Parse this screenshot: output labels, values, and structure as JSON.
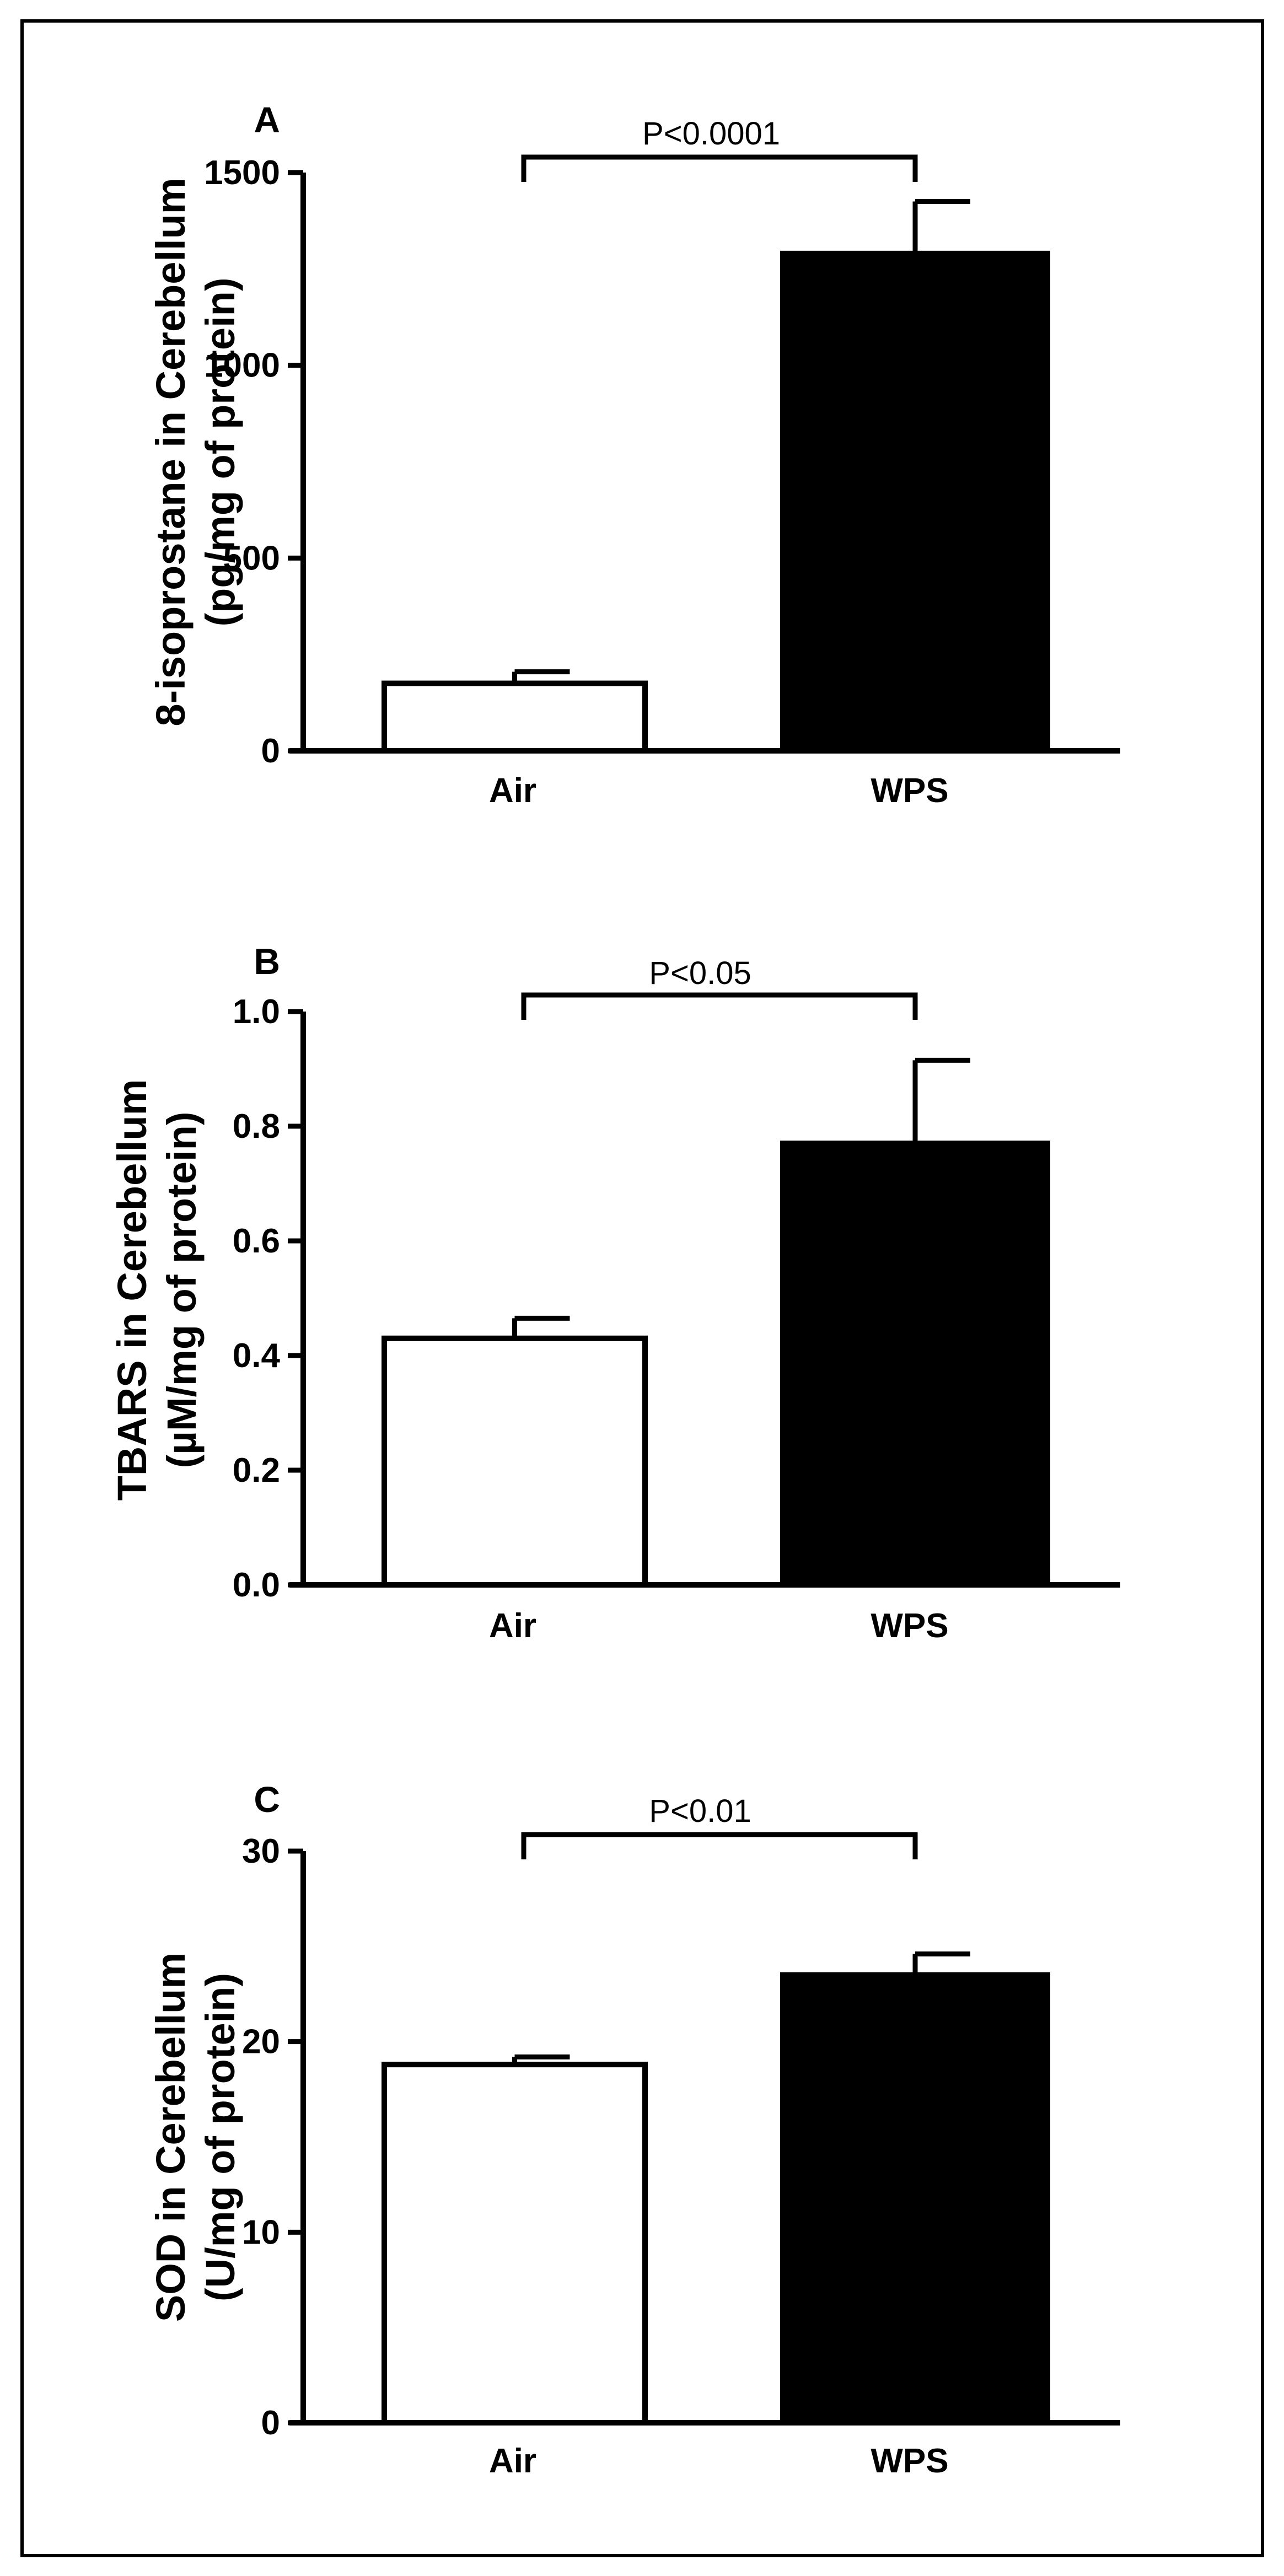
{
  "chart_data": [
    {
      "panel": "A",
      "type": "bar",
      "categories": [
        "Air",
        "WPS"
      ],
      "values": [
        175,
        1290
      ],
      "errors": [
        30,
        135
      ],
      "bar_colors": [
        "#ffffff",
        "#000000"
      ],
      "ylabel_line1": "8-isoprostane in Cerebellum",
      "ylabel_line2": "(pg/mg of protein)",
      "ylim": [
        0,
        1500
      ],
      "yticks": [
        0,
        500,
        1000,
        1500
      ],
      "ytick_labels": [
        "0",
        "500",
        "1000",
        "1500"
      ],
      "significance": "P<0.0001"
    },
    {
      "panel": "B",
      "type": "bar",
      "categories": [
        "Air",
        "WPS"
      ],
      "values": [
        0.43,
        0.77
      ],
      "errors": [
        0.035,
        0.145
      ],
      "bar_colors": [
        "#ffffff",
        "#000000"
      ],
      "ylabel_line1": "TBARS in Cerebellum",
      "ylabel_line2": "(µM/mg of protein)",
      "ylim": [
        0,
        1.0
      ],
      "yticks": [
        0,
        0.2,
        0.4,
        0.6,
        0.8,
        1.0
      ],
      "ytick_labels": [
        "0.0",
        "0.2",
        "0.4",
        "0.6",
        "0.8",
        "1.0"
      ],
      "significance": "P<0.05"
    },
    {
      "panel": "C",
      "type": "bar",
      "categories": [
        "Air",
        "WPS"
      ],
      "values": [
        18.8,
        23.5
      ],
      "errors": [
        0.4,
        1.1
      ],
      "bar_colors": [
        "#ffffff",
        "#000000"
      ],
      "ylabel_line1": "SOD in Cerebellum",
      "ylabel_line2": "(U/mg of protein)",
      "ylim": [
        0,
        30
      ],
      "yticks": [
        0,
        10,
        20,
        30
      ],
      "ytick_labels": [
        "0",
        "10",
        "20",
        "30"
      ],
      "significance": "P<0.01"
    }
  ]
}
